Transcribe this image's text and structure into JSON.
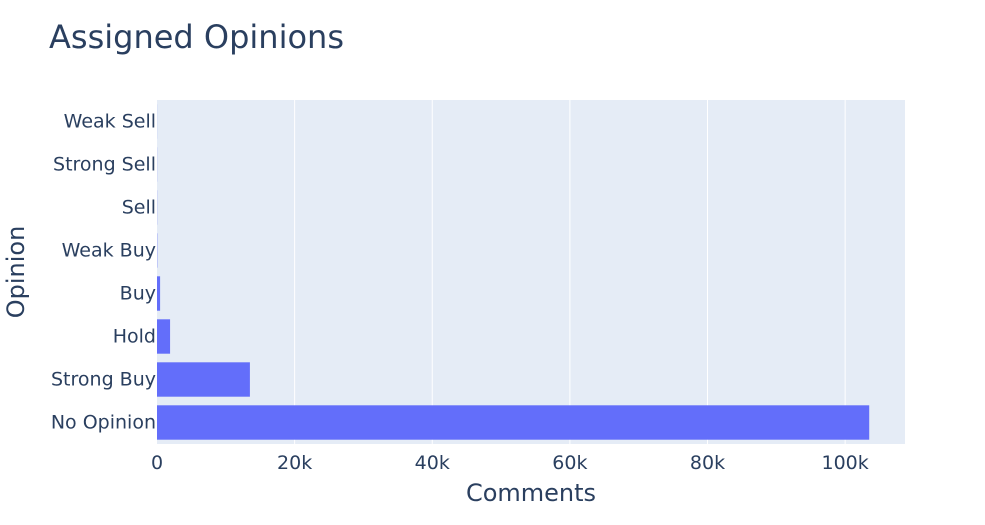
{
  "chart_data": {
    "type": "bar",
    "orientation": "horizontal",
    "title": "Assigned Opinions",
    "xlabel": "Comments",
    "ylabel": "Opinion",
    "categories": [
      "No Opinion",
      "Strong Buy",
      "Hold",
      "Buy",
      "Weak Buy",
      "Sell",
      "Strong Sell",
      "Weak Sell"
    ],
    "values": [
      103500,
      13500,
      1900,
      450,
      40,
      20,
      15,
      10
    ],
    "xlim": [
      0,
      108700
    ],
    "xticks": [
      0,
      20000,
      40000,
      60000,
      80000,
      100000
    ],
    "xtick_labels": [
      "0",
      "20k",
      "40k",
      "60k",
      "80k",
      "100k"
    ],
    "grid": true,
    "colors": {
      "bar": "#636efa",
      "plot_background": "#e5ecf6",
      "gridline": "#ffffff",
      "text": "#2a3f5f"
    }
  }
}
